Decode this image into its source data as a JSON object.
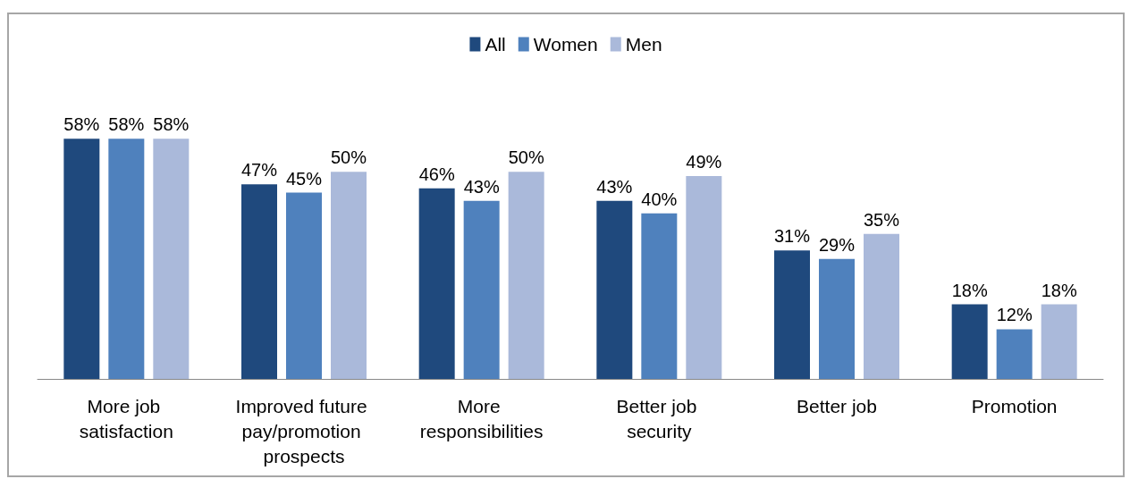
{
  "chart_data": {
    "type": "bar",
    "categories": [
      "More job satisfaction",
      "Improved future pay/promotion prospects",
      "More responsibilities",
      "Better job security",
      "Better job",
      "Promotion"
    ],
    "series": [
      {
        "name": "All",
        "color": "#1f497d",
        "values": [
          58,
          47,
          46,
          43,
          31,
          18
        ],
        "value_labels": [
          "58%",
          "47%",
          "46%",
          "43%",
          "31%",
          "18%"
        ]
      },
      {
        "name": "Women",
        "color": "#4f81bd",
        "values": [
          58,
          45,
          43,
          40,
          29,
          12
        ],
        "value_labels": [
          "58%",
          "45%",
          "43%",
          "40%",
          "29%",
          "12%"
        ]
      },
      {
        "name": "Men",
        "color": "#aab9da",
        "values": [
          58,
          50,
          50,
          49,
          35,
          18
        ],
        "value_labels": [
          "58%",
          "50%",
          "50%",
          "49%",
          "35%",
          "18%"
        ]
      }
    ],
    "legend": "top"
  }
}
